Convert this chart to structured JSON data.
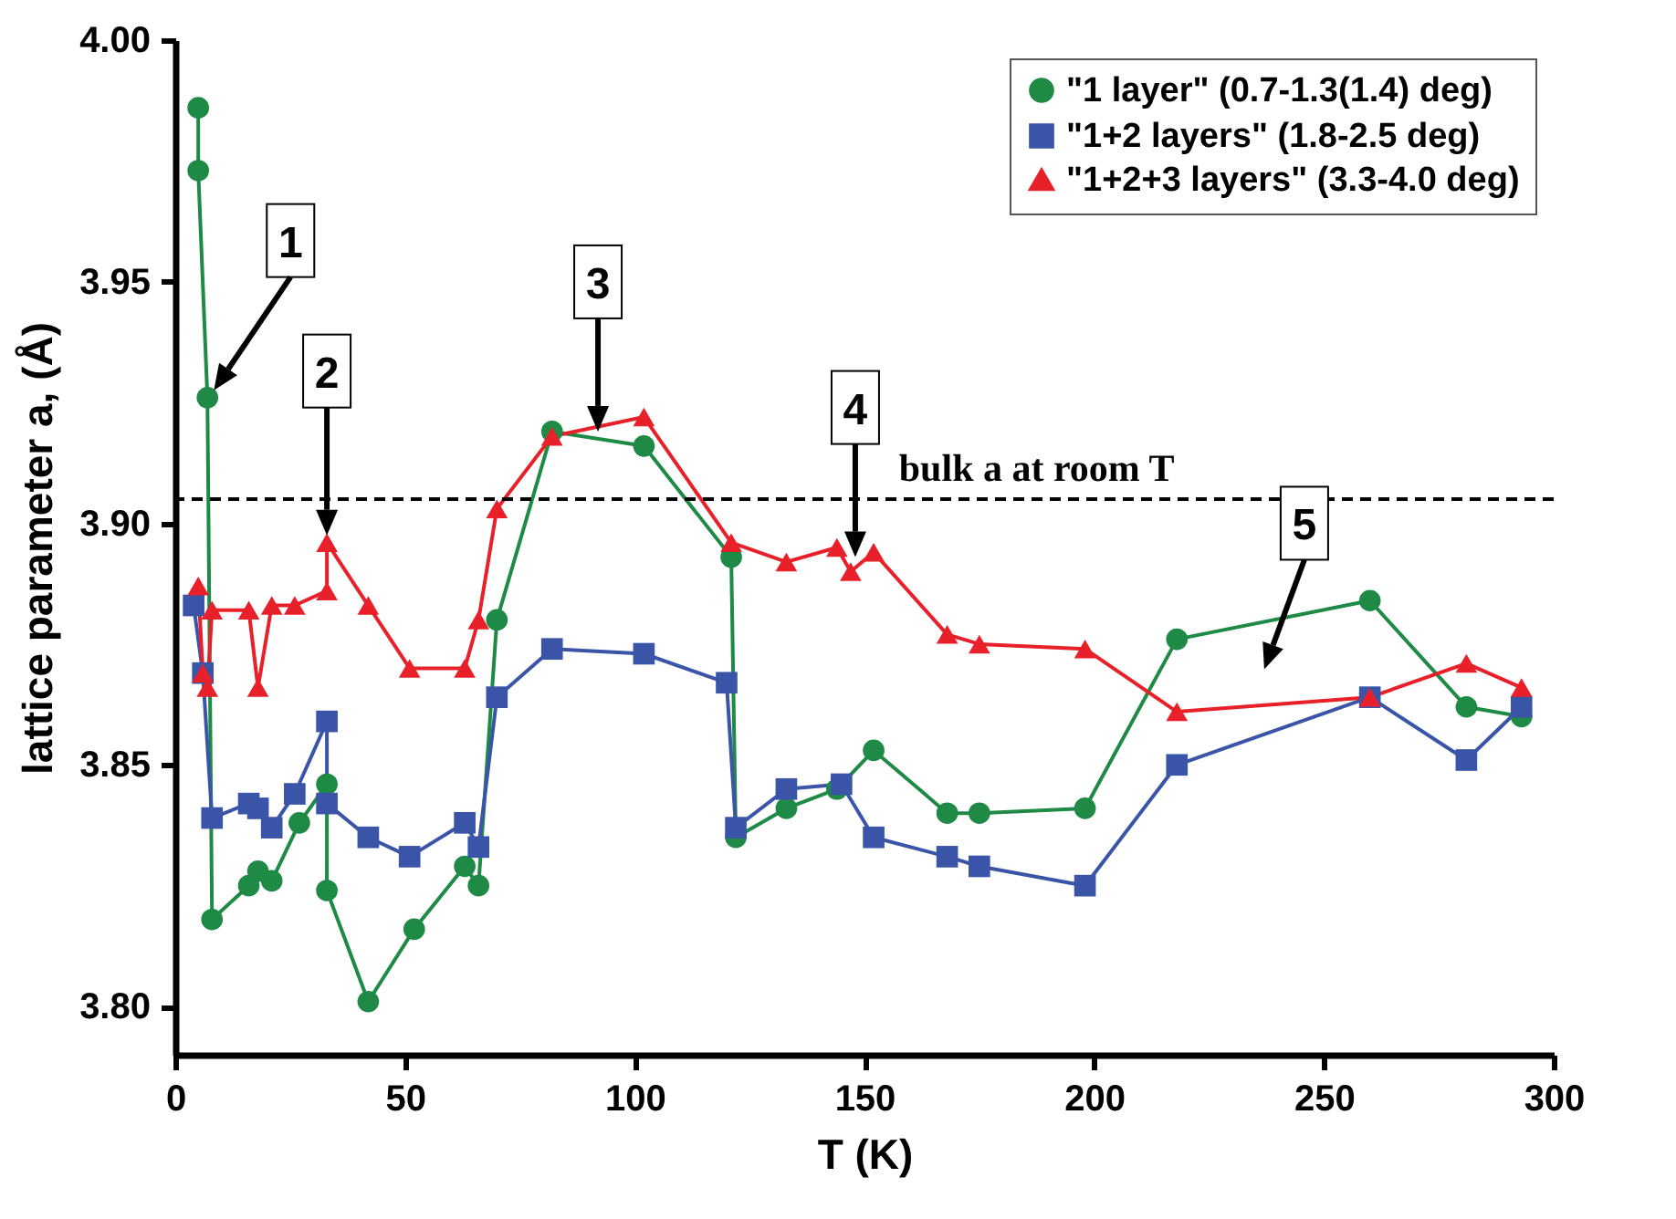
{
  "chart_data": {
    "type": "line",
    "xlabel": "T (K)",
    "ylabel": "lattice parameter a, (Å)",
    "xlim": [
      0,
      300
    ],
    "xticks": [
      0,
      50,
      100,
      150,
      200,
      250,
      300
    ],
    "ylim": [
      3.79,
      4.0
    ],
    "yticks": [
      {
        "value": 3.8,
        "label": "3.80"
      },
      {
        "value": 3.85,
        "label": "3.85"
      },
      {
        "value": 3.9,
        "label": "3.90"
      },
      {
        "value": 3.95,
        "label": "3.95"
      },
      {
        "value": 4.0,
        "label": "4.00"
      }
    ],
    "grid": false,
    "legend": "top right",
    "line_style": "solid",
    "series": [
      {
        "name": "\"1 layer\" (0.7-1.3(1.4) deg)",
        "color": "#1e8a46",
        "marker": "circle",
        "x": [
          5,
          5,
          7,
          8,
          16,
          18,
          21,
          27,
          33,
          33,
          42,
          52,
          63,
          66,
          70,
          82,
          102,
          121,
          122,
          133,
          144,
          152,
          168,
          175,
          198,
          218,
          260,
          281,
          293
        ],
        "values": [
          3.986,
          3.973,
          3.926,
          3.818,
          3.825,
          3.828,
          3.826,
          3.838,
          3.846,
          3.824,
          3.801,
          3.816,
          3.829,
          3.825,
          3.88,
          3.919,
          3.916,
          3.893,
          3.835,
          3.841,
          3.845,
          3.853,
          3.84,
          3.84,
          3.841,
          3.876,
          3.884,
          3.862,
          3.86
        ]
      },
      {
        "name": "\"1+2 layers\" (1.8-2.5 deg)",
        "color": "#3a55a8",
        "marker": "square",
        "x": [
          4,
          6,
          8,
          16,
          18,
          21,
          26,
          33,
          33,
          42,
          51,
          63,
          66,
          70,
          82,
          102,
          120,
          122,
          133,
          145,
          152,
          168,
          175,
          198,
          218,
          260,
          281,
          293
        ],
        "values": [
          3.883,
          3.869,
          3.839,
          3.842,
          3.841,
          3.837,
          3.844,
          3.859,
          3.842,
          3.835,
          3.831,
          3.838,
          3.833,
          3.864,
          3.874,
          3.873,
          3.867,
          3.837,
          3.845,
          3.846,
          3.835,
          3.831,
          3.829,
          3.825,
          3.85,
          3.864,
          3.851,
          3.862
        ]
      },
      {
        "name": "\"1+2+3 layers\" (3.3-4.0 deg)",
        "color": "#e8202a",
        "marker": "triangle",
        "x": [
          5,
          6,
          7,
          8,
          16,
          18,
          21,
          26,
          33,
          33,
          42,
          51,
          63,
          66,
          70,
          82,
          102,
          121,
          133,
          144,
          147,
          152,
          168,
          175,
          198,
          218,
          260,
          281,
          293
        ],
        "values": [
          3.887,
          3.869,
          3.866,
          3.882,
          3.882,
          3.866,
          3.883,
          3.883,
          3.886,
          3.896,
          3.883,
          3.87,
          3.87,
          3.88,
          3.903,
          3.918,
          3.922,
          3.896,
          3.892,
          3.895,
          3.89,
          3.894,
          3.877,
          3.875,
          3.874,
          3.861,
          3.864,
          3.871,
          3.866
        ]
      }
    ],
    "ref_lines": [
      {
        "axis": "y",
        "value": 3.905,
        "label": "bulk a at room T",
        "color": "#000000",
        "line_style": "dashed"
      }
    ],
    "annotations": [
      "1",
      "2",
      {
        "text": "3",
        "x": 92,
        "y": 3.919
      },
      {
        "text": "4",
        "x": 148,
        "y": 3.893
      },
      "5"
    ]
  }
}
